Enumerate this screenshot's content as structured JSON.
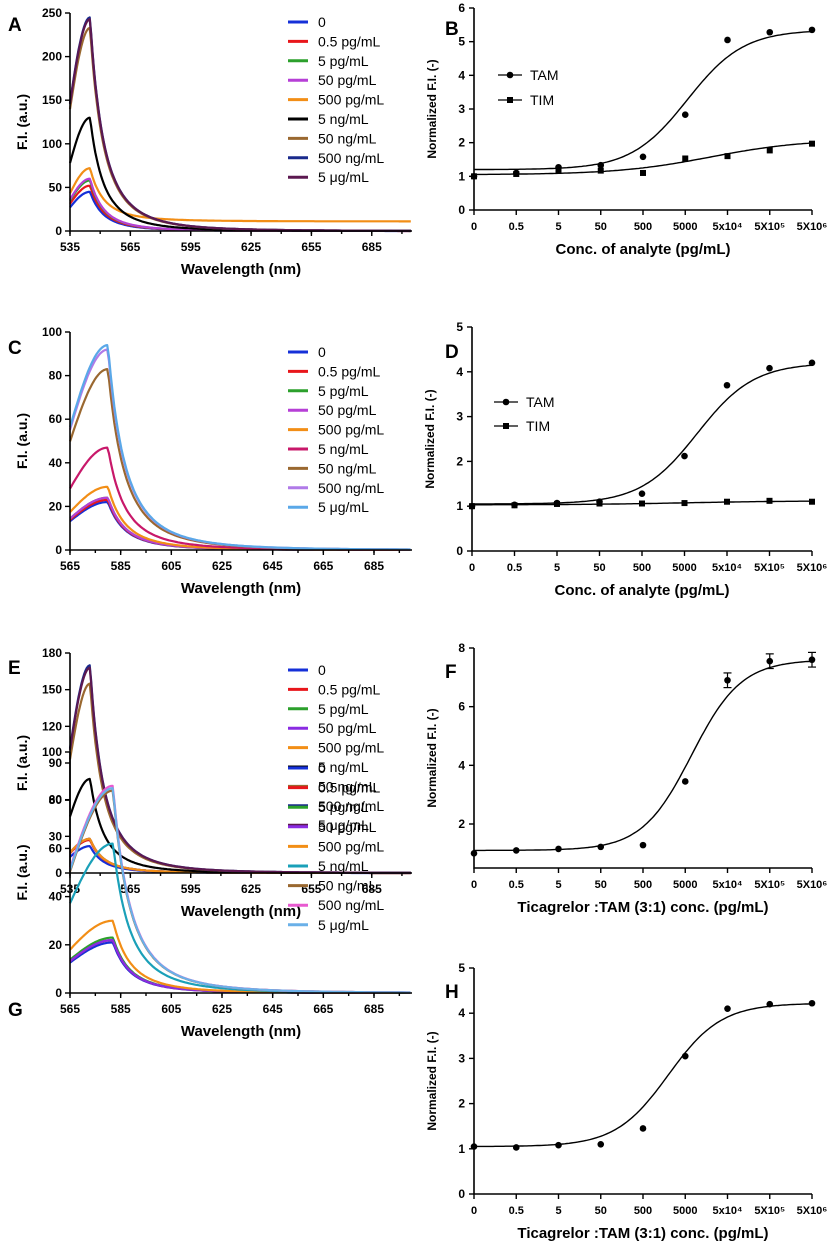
{
  "chart_data": [
    {
      "panel": "A",
      "type": "line",
      "xlabel": "Wavelength (nm)",
      "ylabel": "F.I. (a.u.)",
      "xlim": [
        535,
        705
      ],
      "ylim": [
        0,
        250
      ],
      "xticks": [
        "535",
        "565",
        "595",
        "625",
        "655",
        "685"
      ],
      "yticks": [
        "0",
        "50",
        "100",
        "150",
        "200",
        "250"
      ],
      "peak_wavelength": 545,
      "series": [
        {
          "name": "0",
          "color": "#1530d8",
          "peak": 45,
          "tail": 0
        },
        {
          "name": "0.5 pg/mL",
          "color": "#e8161b",
          "peak": 52,
          "tail": 0
        },
        {
          "name": "5 pg/mL",
          "color": "#2ca02c",
          "peak": 58,
          "tail": 0
        },
        {
          "name": "50 pg/mL",
          "color": "#b63fd6",
          "peak": 60,
          "tail": 0
        },
        {
          "name": "500 pg/mL",
          "color": "#f28e16",
          "peak": 72,
          "tail": 11
        },
        {
          "name": "5 ng/mL",
          "color": "#000000",
          "peak": 130,
          "tail": 0
        },
        {
          "name": "50 ng/mL",
          "color": "#9a6830",
          "peak": 233,
          "tail": 0
        },
        {
          "name": "500 ng/mL",
          "color": "#1a2a8c",
          "peak": 245,
          "tail": 0
        },
        {
          "name": "5 μg/mL",
          "color": "#5c1850",
          "peak": 243,
          "tail": 0
        }
      ]
    },
    {
      "panel": "B",
      "type": "scatter",
      "xlabel": "Conc. of analyte (pg/mL)",
      "ylabel": "Normalized F.I. (-)",
      "ylim": [
        0,
        6
      ],
      "xticks": [
        "0",
        "0.5",
        "5",
        "50",
        "500",
        "5000",
        "5x10⁴",
        "5X10⁵",
        "5X10⁶"
      ],
      "yticks": [
        "0",
        "1",
        "2",
        "3",
        "4",
        "5",
        "6"
      ],
      "legend": [
        "TAM",
        "TIM"
      ],
      "series": [
        {
          "name": "TAM",
          "marker": "circle",
          "values": [
            1.0,
            1.1,
            1.27,
            1.33,
            1.58,
            2.83,
            5.05,
            5.28,
            5.35
          ],
          "fit": {
            "bottom": 1.2,
            "top": 5.35,
            "mid": 5.05,
            "slope": 1.5
          }
        },
        {
          "name": "TIM",
          "marker": "square",
          "values": [
            1.0,
            1.07,
            1.18,
            1.17,
            1.1,
            1.53,
            1.6,
            1.77,
            1.97
          ],
          "fit": {
            "bottom": 1.05,
            "top": 2.1,
            "mid": 5.6,
            "slope": 0.9
          }
        }
      ]
    },
    {
      "panel": "C",
      "type": "line",
      "xlabel": "Wavelength (nm)",
      "ylabel": "F.I. (a.u.)",
      "xlim": [
        565,
        700
      ],
      "ylim": [
        0,
        100
      ],
      "xticks": [
        "565",
        "585",
        "605",
        "625",
        "645",
        "665",
        "685"
      ],
      "yticks": [
        "0",
        "20",
        "40",
        "60",
        "80",
        "100"
      ],
      "peak_wavelength": 580,
      "series": [
        {
          "name": "0",
          "color": "#1530d8",
          "peak": 22
        },
        {
          "name": "0.5 pg/mL",
          "color": "#e8161b",
          "peak": 23
        },
        {
          "name": "5 pg/mL",
          "color": "#2ca02c",
          "peak": 24
        },
        {
          "name": "50 pg/mL",
          "color": "#b63fd6",
          "peak": 24
        },
        {
          "name": "500 pg/mL",
          "color": "#f28e16",
          "peak": 29
        },
        {
          "name": "5 ng/mL",
          "color": "#c8186a",
          "peak": 47
        },
        {
          "name": "50 ng/mL",
          "color": "#9a6830",
          "peak": 83
        },
        {
          "name": "500 ng/mL",
          "color": "#b07ae8",
          "peak": 92
        },
        {
          "name": "5 μg/mL",
          "color": "#5aa8e8",
          "peak": 94
        }
      ]
    },
    {
      "panel": "D",
      "type": "scatter",
      "xlabel": "Conc. of analyte (pg/mL)",
      "ylabel": "Normalized F.I. (-)",
      "ylim": [
        0,
        5
      ],
      "xticks": [
        "0",
        "0.5",
        "5",
        "50",
        "500",
        "5000",
        "5x10⁴",
        "5X10⁵",
        "5X10⁶"
      ],
      "yticks": [
        "0",
        "1",
        "2",
        "3",
        "4",
        "5"
      ],
      "legend": [
        "TAM",
        "TIM"
      ],
      "series": [
        {
          "name": "TAM",
          "marker": "circle",
          "values": [
            1.0,
            1.03,
            1.07,
            1.1,
            1.28,
            2.12,
            3.7,
            4.08,
            4.2
          ],
          "fit": {
            "bottom": 1.05,
            "top": 4.2,
            "mid": 5.3,
            "slope": 1.5
          }
        },
        {
          "name": "TIM",
          "marker": "square",
          "values": [
            1.0,
            1.02,
            1.05,
            1.06,
            1.06,
            1.07,
            1.1,
            1.12,
            1.1
          ],
          "fit": {
            "bottom": 1.03,
            "top": 1.12,
            "mid": 5.0,
            "slope": 0.8
          }
        }
      ]
    },
    {
      "panel": "E",
      "type": "line",
      "xlabel": "Wavelength (nm)",
      "ylabel": "F.I. (a.u.)",
      "xlim": [
        535,
        705
      ],
      "ylim": [
        0,
        180
      ],
      "xticks": [
        "535",
        "565",
        "595",
        "625",
        "655",
        "685"
      ],
      "yticks": [
        "0",
        "30",
        "60",
        "90",
        "120",
        "150",
        "180"
      ],
      "peak_wavelength": 545,
      "series": [
        {
          "name": "0",
          "color": "#1530d8",
          "peak": 22
        },
        {
          "name": "0.5 pg/mL",
          "color": "#e8161b",
          "peak": 27
        },
        {
          "name": "5 pg/mL",
          "color": "#2ca02c",
          "peak": 28
        },
        {
          "name": "50 pg/mL",
          "color": "#8a2be2",
          "peak": 28
        },
        {
          "name": "500 pg/mL",
          "color": "#f28e16",
          "peak": 28
        },
        {
          "name": "5 ng/mL",
          "color": "#000000",
          "peak": 77
        },
        {
          "name": "50 ng/mL",
          "color": "#9a6830",
          "peak": 155
        },
        {
          "name": "500 ng/mL",
          "color": "#1a2a8c",
          "peak": 170
        },
        {
          "name": "5 μg/mL",
          "color": "#5c1850",
          "peak": 168
        }
      ]
    },
    {
      "panel": "F",
      "type": "scatter",
      "xlabel": "Ticagrelor :TAM (3:1) conc. (pg/mL)",
      "ylabel": "Normalized F.I. (-)",
      "ylim": [
        0.5,
        8
      ],
      "xticks": [
        "0",
        "0.5",
        "5",
        "50",
        "500",
        "5000",
        "5x10⁴",
        "5X10⁵",
        "5X10⁶"
      ],
      "yticks": [
        "2",
        "4",
        "6",
        "8"
      ],
      "series": [
        {
          "name": "Ticagrelor:TAM",
          "marker": "circle",
          "values": [
            1.0,
            1.1,
            1.15,
            1.22,
            1.28,
            3.45,
            6.9,
            7.55,
            7.6
          ],
          "errors": [
            0,
            0,
            0,
            0,
            0,
            0,
            0.25,
            0.25,
            0.25
          ],
          "fit": {
            "bottom": 1.1,
            "top": 7.6,
            "mid": 5.15,
            "slope": 1.7
          }
        }
      ]
    },
    {
      "panel": "H",
      "type": "scatter",
      "xlabel": "Ticagrelor :TAM (3:1) conc. (pg/mL)",
      "ylabel": "Normalized F.I. (-)",
      "ylim": [
        0,
        5
      ],
      "xticks": [
        "0",
        "0.5",
        "5",
        "50",
        "500",
        "5000",
        "5x10⁴",
        "5X10⁵",
        "5X10⁶"
      ],
      "yticks": [
        "0",
        "1",
        "2",
        "3",
        "4",
        "5"
      ],
      "series": [
        {
          "name": "Ticagrelor:TAM",
          "marker": "circle",
          "values": [
            1.05,
            1.03,
            1.08,
            1.1,
            1.45,
            3.05,
            4.1,
            4.2,
            4.22
          ],
          "fit": {
            "bottom": 1.05,
            "top": 4.22,
            "mid": 4.6,
            "slope": 1.6
          }
        }
      ]
    },
    {
      "panel": "G",
      "type": "line",
      "xlabel": "Wavelength (nm)",
      "ylabel": "F.I. (a.u.)",
      "xlim": [
        565,
        700
      ],
      "ylim": [
        0,
        100
      ],
      "xticks": [
        "565",
        "585",
        "605",
        "625",
        "645",
        "665",
        "685"
      ],
      "yticks": [
        "0",
        "20",
        "40",
        "60",
        "80",
        "100"
      ],
      "peak_wavelength": 582,
      "series": [
        {
          "name": "0",
          "color": "#1530d8",
          "peak": 21
        },
        {
          "name": "0.5 pg/mL",
          "color": "#e8161b",
          "peak": 22
        },
        {
          "name": "5 pg/mL",
          "color": "#2ca02c",
          "peak": 23
        },
        {
          "name": "50 pg/mL",
          "color": "#8a2be2",
          "peak": 22
        },
        {
          "name": "500 pg/mL",
          "color": "#f28e16",
          "peak": 30
        },
        {
          "name": "5 ng/mL",
          "color": "#1aa0b8",
          "peak": 62
        },
        {
          "name": "50 ng/mL",
          "color": "#9a6830",
          "peak": 84
        },
        {
          "name": "500 ng/mL",
          "color": "#e85ad0",
          "peak": 86
        },
        {
          "name": "5 μg/mL",
          "color": "#6ab0e8",
          "peak": 85
        }
      ]
    }
  ]
}
